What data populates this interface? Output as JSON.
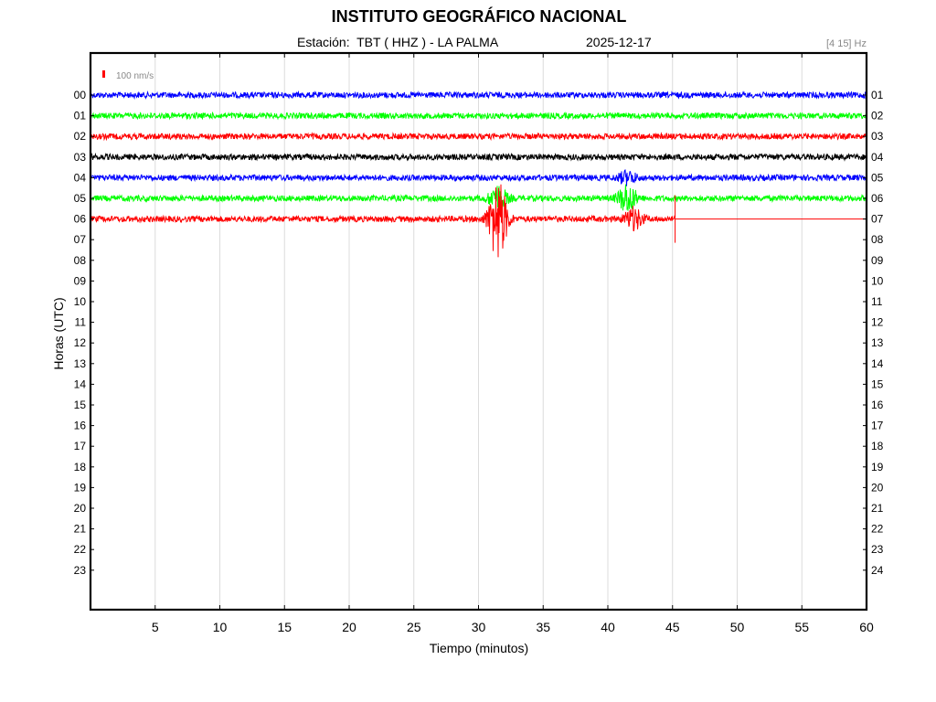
{
  "header": {
    "title": "INSTITUTO GEOGRÁFICO NACIONAL",
    "station_label": "Estación:  TBT ( HHZ ) - LA PALMA",
    "date": "2025-12-17",
    "filter": "[4 15] Hz"
  },
  "chart_data": {
    "type": "line",
    "title": "INSTITUTO GEOGRÁFICO NACIONAL",
    "xlabel": "Tiempo (minutos)",
    "ylabel": "Horas (UTC)",
    "xlim": [
      0,
      60
    ],
    "x_ticks": [
      "5",
      "10",
      "15",
      "20",
      "25",
      "30",
      "35",
      "40",
      "45",
      "50",
      "55",
      "60"
    ],
    "y_ticks_left": [
      "00",
      "01",
      "02",
      "03",
      "04",
      "05",
      "06",
      "07",
      "08",
      "09",
      "10",
      "11",
      "12",
      "13",
      "14",
      "15",
      "16",
      "17",
      "18",
      "19",
      "20",
      "21",
      "22",
      "23"
    ],
    "y_ticks_right": [
      "01",
      "02",
      "03",
      "04",
      "05",
      "06",
      "07",
      "08",
      "09",
      "10",
      "11",
      "12",
      "13",
      "14",
      "15",
      "16",
      "17",
      "18",
      "19",
      "20",
      "21",
      "22",
      "23",
      "24"
    ],
    "scale_label": "100 nm/s",
    "scale_color": "#ff0000",
    "grid": true,
    "series": [
      {
        "hour": 0,
        "color": "#0000ff",
        "end_minute": 60,
        "events": []
      },
      {
        "hour": 1,
        "color": "#00ff00",
        "end_minute": 60,
        "events": []
      },
      {
        "hour": 2,
        "color": "#ff0000",
        "end_minute": 60,
        "events": []
      },
      {
        "hour": 3,
        "color": "#000000",
        "end_minute": 60,
        "events": []
      },
      {
        "hour": 4,
        "color": "#0000ff",
        "end_minute": 60,
        "events": [
          {
            "minute": 41.5,
            "amplitude": 0.5
          }
        ]
      },
      {
        "hour": 5,
        "color": "#00ff00",
        "end_minute": 60,
        "events": [
          {
            "minute": 31.5,
            "amplitude": 1.0
          },
          {
            "minute": 41.5,
            "amplitude": 1.2
          }
        ]
      },
      {
        "hour": 6,
        "color": "#ff0000",
        "end_minute": 45.2,
        "events": [
          {
            "minute": 31.5,
            "amplitude": 3.4
          },
          {
            "minute": 42.0,
            "amplitude": 0.9
          }
        ]
      }
    ]
  }
}
